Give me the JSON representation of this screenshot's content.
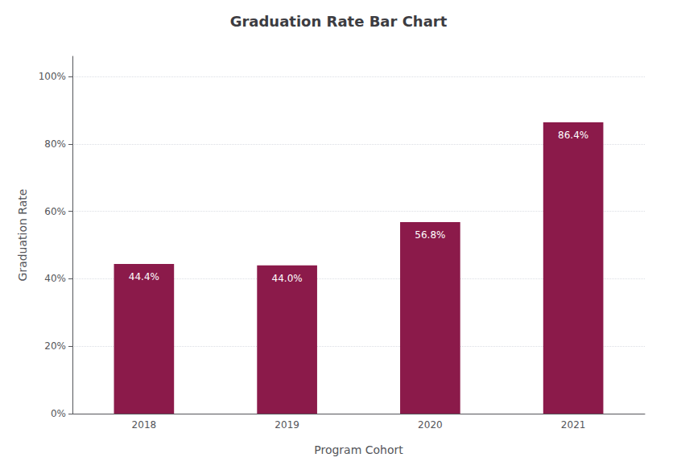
{
  "chart_data": {
    "type": "bar",
    "title": "Graduation Rate Bar Chart",
    "xlabel": "Program Cohort",
    "ylabel": "Graduation Rate",
    "categories": [
      "2018",
      "2019",
      "2020",
      "2021"
    ],
    "values": [
      44.4,
      44.0,
      56.8,
      86.4
    ],
    "value_labels": [
      "44.4%",
      "44.0%",
      "56.8%",
      "86.4%"
    ],
    "color": "#8B1A4A",
    "ylim": [
      0,
      106
    ],
    "yticks": [
      {
        "value": 0,
        "label": "0%"
      },
      {
        "value": 20,
        "label": "20%"
      },
      {
        "value": 40,
        "label": "40%"
      },
      {
        "value": 60,
        "label": "60%"
      },
      {
        "value": 80,
        "label": "80%"
      },
      {
        "value": 100,
        "label": "100%"
      }
    ],
    "grid": true,
    "data_labels": true
  }
}
